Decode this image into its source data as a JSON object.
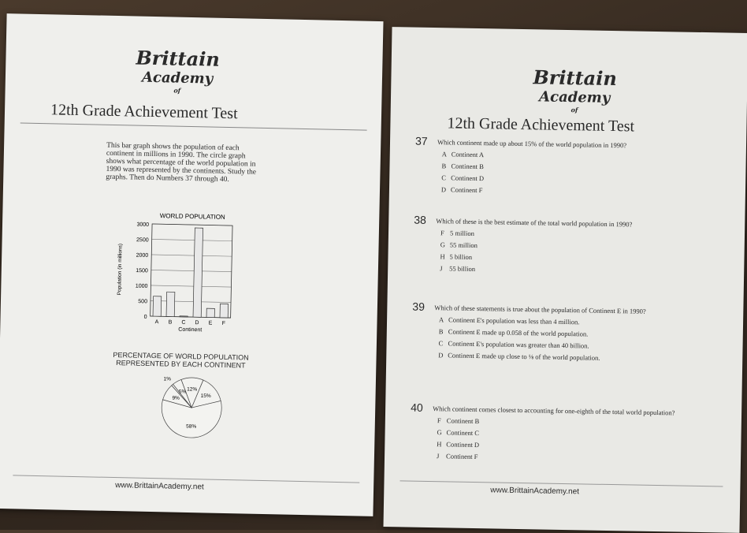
{
  "left_page": {
    "logo": {
      "name": "Brittain",
      "of": "of",
      "academy": "Academy"
    },
    "title": "12th Grade Achievement Test",
    "intro": "This bar graph shows the population of each continent in millions in 1990. The circle graph shows what percentage of the world population in 1990 was represented by the continents. Study the graphs. Then do Numbers 37 through 40.",
    "bar_chart": {
      "type": "bar",
      "title": "WORLD POPULATION",
      "x_label": "Continent",
      "y_label": "Population (in millions)",
      "categories": [
        "A",
        "B",
        "C",
        "D",
        "E",
        "F"
      ],
      "values": [
        650,
        800,
        25,
        2900,
        290,
        450
      ],
      "ylim": [
        0,
        3000
      ],
      "yticks": [
        0,
        500,
        1000,
        1500,
        2000,
        2500,
        3000
      ],
      "color": "#e8e8e8"
    },
    "pie_chart": {
      "type": "pie",
      "title": "PERCENTAGE OF WORLD POPULATION REPRESENTED BY EACH CONTINENT",
      "values": [
        12,
        15,
        58,
        9,
        1,
        5
      ],
      "value_labels": [
        "12%",
        "15%",
        "58%",
        "9%",
        "1%",
        "5%"
      ]
    },
    "footer": "www.BrittainAcademy.net"
  },
  "right_page": {
    "logo": {
      "name": "Brittain",
      "of": "of",
      "academy": "Academy"
    },
    "title": "12th Grade Achievement Test",
    "questions": [
      {
        "number": "37",
        "stem": "Which continent made up about 15% of the world population in 1990?",
        "options": [
          {
            "letter": "A",
            "text": "Continent A"
          },
          {
            "letter": "B",
            "text": "Continent B"
          },
          {
            "letter": "C",
            "text": "Continent D"
          },
          {
            "letter": "D",
            "text": "Continent F"
          }
        ]
      },
      {
        "number": "38",
        "stem": "Which of these is the best estimate of the total world population in 1990?",
        "options": [
          {
            "letter": "F",
            "text": "5 million"
          },
          {
            "letter": "G",
            "text": "55 million"
          },
          {
            "letter": "H",
            "text": "5 billion"
          },
          {
            "letter": "J",
            "text": "55 billion"
          }
        ]
      },
      {
        "number": "39",
        "stem": "Which of these statements is true about the population of Continent E in 1990?",
        "options": [
          {
            "letter": "A",
            "text": "Continent E's population was less than 4 million."
          },
          {
            "letter": "B",
            "text": "Continent E made up 0.058 of the world population."
          },
          {
            "letter": "C",
            "text": "Continent E's population was greater than 40 billion."
          },
          {
            "letter": "D",
            "text": "Continent E made up close to ⅛ of the world population."
          }
        ]
      },
      {
        "number": "40",
        "stem": "Which continent comes closest to accounting for one-eighth of the total world population?",
        "options": [
          {
            "letter": "F",
            "text": "Continent B"
          },
          {
            "letter": "G",
            "text": "Continent C"
          },
          {
            "letter": "H",
            "text": "Continent D"
          },
          {
            "letter": "J",
            "text": "Continent F"
          }
        ]
      }
    ],
    "footer": "www.BrittainAcademy.net"
  }
}
